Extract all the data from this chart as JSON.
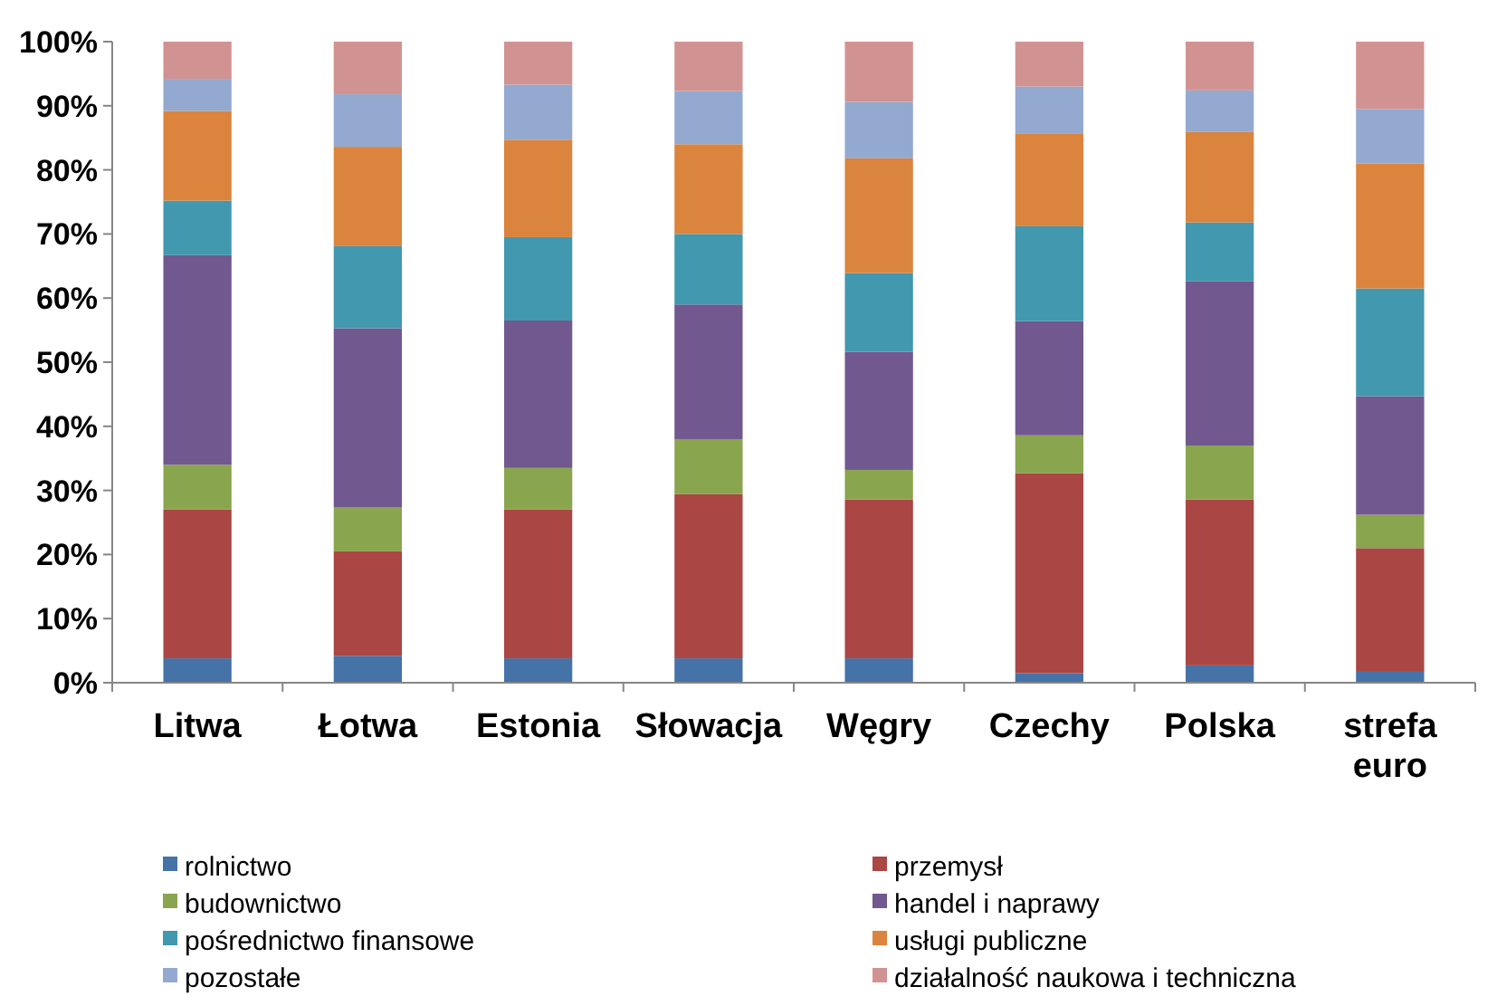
{
  "chart_data": {
    "type": "bar",
    "stacked": true,
    "categories": [
      "Litwa",
      "Łotwa",
      "Estonia",
      "Słowacja",
      "Węgry",
      "Czechy",
      "Polska",
      "strefa euro"
    ],
    "ylim": [
      0,
      100
    ],
    "yticks": [
      {
        "value": 0,
        "label": "0%"
      },
      {
        "value": 10,
        "label": "10%"
      },
      {
        "value": 20,
        "label": "20%"
      },
      {
        "value": 30,
        "label": "30%"
      },
      {
        "value": 40,
        "label": "40%"
      },
      {
        "value": 50,
        "label": "50%"
      },
      {
        "value": 60,
        "label": "60%"
      },
      {
        "value": 70,
        "label": "70%"
      },
      {
        "value": 80,
        "label": "80%"
      },
      {
        "value": 90,
        "label": "90%"
      },
      {
        "value": 100,
        "label": "100%"
      }
    ],
    "grid": false,
    "legend": "bottom",
    "series": [
      {
        "name": "rolnictwo",
        "color": "#4572a7",
        "values": [
          3.8,
          4.2,
          3.8,
          3.8,
          3.8,
          1.5,
          2.7,
          1.7
        ]
      },
      {
        "name": "przemysł",
        "color": "#aa4643",
        "values": [
          23.2,
          16.3,
          23.2,
          25.6,
          24.8,
          31.2,
          25.9,
          19.3
        ]
      },
      {
        "name": "budownictwo",
        "color": "#89a54e",
        "values": [
          7,
          6.9,
          6.5,
          8.6,
          4.6,
          5.9,
          8.4,
          5.2
        ]
      },
      {
        "name": "handel i naprawy",
        "color": "#71588f",
        "values": [
          32.7,
          27.9,
          23,
          21,
          18.4,
          17.8,
          25.6,
          18.5
        ]
      },
      {
        "name": "pośrednictwo finansowe",
        "color": "#4198af",
        "values": [
          8.5,
          12.8,
          13,
          11,
          12.3,
          14.8,
          9.2,
          16.8
        ]
      },
      {
        "name": "usługi publiczne",
        "color": "#db843d",
        "values": [
          14,
          15.5,
          15.2,
          14,
          17.9,
          14.4,
          14.1,
          19.5
        ]
      },
      {
        "name": "pozostałe",
        "color": "#93a9cf",
        "values": [
          5,
          8.2,
          8.6,
          8.3,
          8.8,
          7.4,
          6.5,
          8.5
        ]
      },
      {
        "name": "działalność naukowa i techniczna",
        "color": "#d19392",
        "values": [
          5.8,
          8.2,
          6.7,
          7.7,
          9.4,
          7,
          7.6,
          10.5
        ]
      }
    ]
  }
}
